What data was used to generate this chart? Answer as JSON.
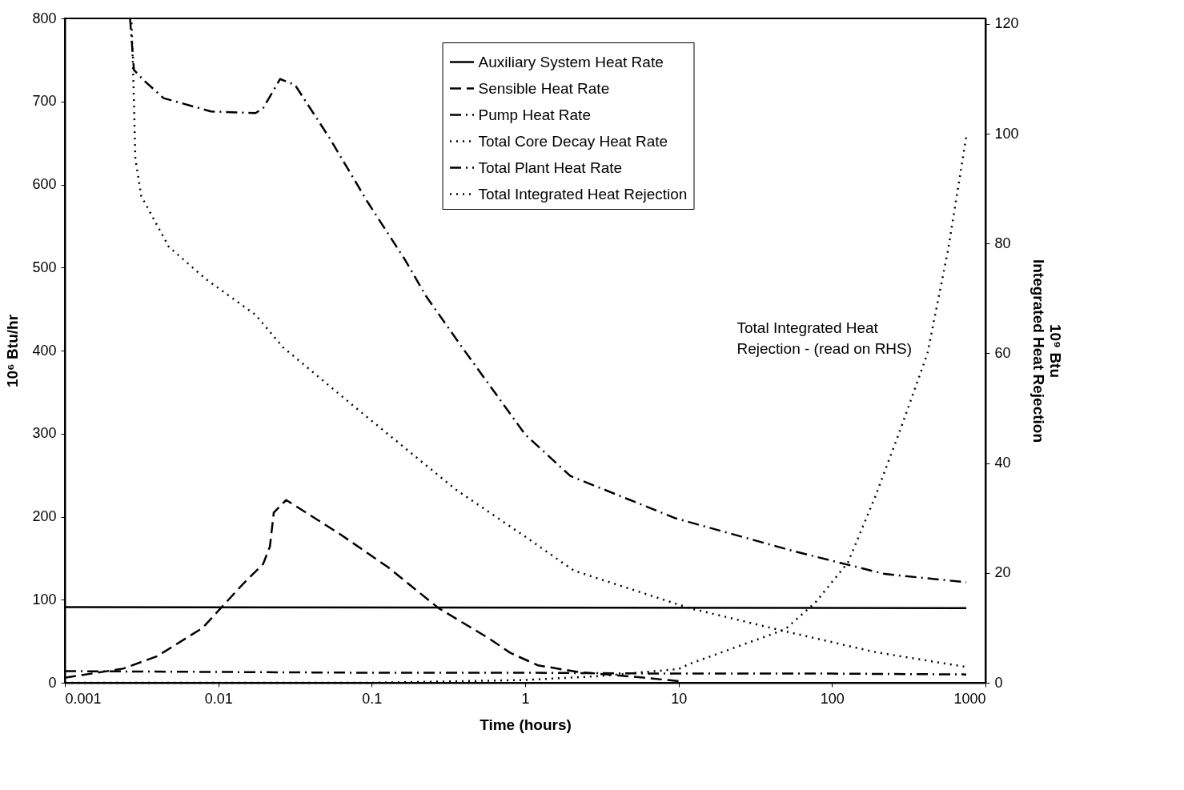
{
  "chart_data": {
    "type": "line",
    "xlabel": "Time (hours)",
    "ylabel": "10⁶ Btu/hr",
    "y2label": "10⁹ Btu\nIntegrated Heat Rejection",
    "log": "x",
    "xlim": [
      0.001,
      1000
    ],
    "xticks": [
      0.001,
      0.01,
      0.1,
      1,
      10,
      100,
      1000
    ],
    "ylim": [
      0,
      800
    ],
    "yticks": [
      0,
      100,
      200,
      300,
      400,
      500,
      600,
      700,
      800
    ],
    "y2lim": [
      0,
      121
    ],
    "y2ticks": [
      0,
      20,
      40,
      60,
      80,
      100,
      120
    ],
    "grid": false,
    "legend": "top",
    "marker": "none",
    "annotations": [
      "Total Integrated Heat Rejection - (read on RHS)"
    ],
    "series": [
      {
        "name": "Auxiliary System Heat Rate",
        "color": "#000000",
        "line_style": "solid",
        "x": [
          0.001,
          750
        ],
        "values": [
          91,
          90
        ]
      },
      {
        "name": "Sensible Heat Rate",
        "color": "#000000",
        "line_style": "dashed",
        "x": [
          0.001,
          0.0024,
          0.004,
          0.0079,
          0.0145,
          0.0196,
          0.0217,
          0.023,
          0.0277,
          0.061,
          0.128,
          0.272,
          0.574,
          0.8,
          1.21,
          2.2,
          5.3,
          10
        ],
        "values": [
          6,
          17,
          32,
          66,
          119,
          143,
          164,
          205,
          220,
          180,
          139,
          90,
          54,
          36,
          21,
          13,
          7,
          2
        ]
      },
      {
        "name": "Pump Heat Rate",
        "color": "#000000",
        "line_style": "dashdot",
        "x": [
          0.001,
          0.01,
          0.1,
          1,
          10,
          100,
          750
        ],
        "values": [
          14,
          13,
          12,
          12,
          11,
          11,
          10
        ]
      },
      {
        "name": "Total Core Decay Heat Rate",
        "color": "#000000",
        "line_style": "dotted",
        "x": [
          0.00272,
          0.0028,
          0.00288,
          0.00315,
          0.00476,
          0.00831,
          0.0175,
          0.0264,
          0.0788,
          0.351,
          1.0,
          2.08,
          11.7,
          49.3,
          190,
          750
        ],
        "values": [
          795,
          722,
          631,
          586,
          525,
          486,
          443,
          404,
          331,
          233,
          176,
          135,
          90,
          62,
          37,
          19
        ]
      },
      {
        "name": "Total Plant Heat Rate",
        "color": "#000000",
        "line_style": "dashdot",
        "x": [
          0.00266,
          0.00282,
          0.00329,
          0.0044,
          0.00896,
          0.0175,
          0.0196,
          0.0253,
          0.0316,
          0.0531,
          0.0932,
          0.164,
          0.227,
          0.388,
          1.0,
          1.97,
          9.57,
          54.9,
          220,
          750
        ],
        "values": [
          800,
          738,
          725,
          704,
          688,
          686,
          692,
          727,
          720,
          656,
          580,
          510,
          465,
          404,
          299,
          249,
          198,
          159,
          131,
          121
        ]
      },
      {
        "name": "Total Integrated Heat Rejection",
        "color": "#000000",
        "line_style": "dotted",
        "axis": "y2",
        "x": [
          0.001,
          0.1,
          1,
          3,
          10,
          11.7,
          49.3,
          77.8,
          127,
          190,
          283,
          419,
          572,
          750
        ],
        "values": [
          0,
          0,
          0.5,
          1.2,
          2.5,
          3.4,
          9.7,
          14.6,
          21.9,
          33.7,
          46.6,
          60,
          79,
          99.5
        ]
      }
    ]
  }
}
